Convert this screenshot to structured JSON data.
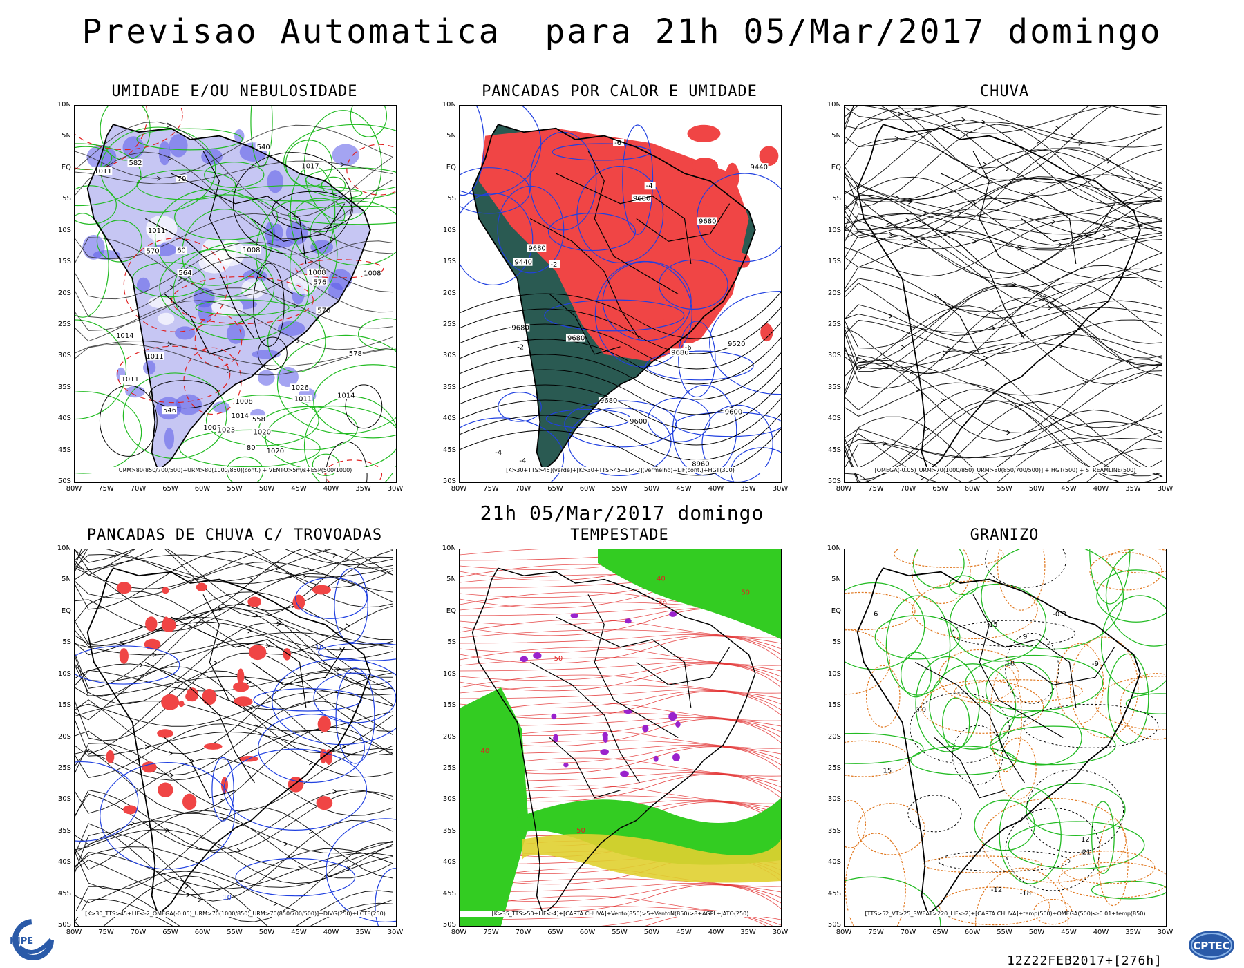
{
  "header": {
    "title": "Previsao Automatica  para 21h 05/Mar/2017 domingo",
    "mid_title": "21h 05/Mar/2017 domingo"
  },
  "axes": {
    "lat_labels": [
      "10N",
      "5N",
      "EQ",
      "5S",
      "10S",
      "15S",
      "20S",
      "25S",
      "30S",
      "35S",
      "40S",
      "45S",
      "50S"
    ],
    "lon_labels": [
      "80W",
      "75W",
      "70W",
      "65W",
      "60W",
      "55W",
      "50W",
      "45W",
      "40W",
      "35W",
      "30W"
    ]
  },
  "panels": [
    {
      "title": "UMIDADE E/OU NEBULOSIDADE",
      "legend": "URM>80(850/700/500)+URM>80(1000/850)(cont.) + VENTO>5m/s+ESP(500/1000)"
    },
    {
      "title": "PANCADAS POR CALOR E UMIDADE",
      "legend": "[K>30+TTS>45](verde)+[K>30+TTS>45+LI<-2](vermelho)+LIF(cont.)+HGT(300)"
    },
    {
      "title": "CHUVA",
      "legend": "[OMEGA(-0.05)_URM>70(1000/850)_URM>80(850/700/500)] + HGT(500) + STREAMLINE(500)"
    },
    {
      "title": "PANCADAS DE CHUVA C/ TROVOADAS",
      "legend": "[K>30_TTS>45+LIF<-2_OMEGA(-0.05)_URM>70(1000/850)_URM>70(850/700/500)]+DIVG(250)+LCTE(250)"
    },
    {
      "title": "TEMPESTADE",
      "legend": "[K>35_TTS>50+LIF<-4]+[CARTA CHUVA]+Vento(850)>5+VentoN(850)>8+AGPL+JATO(250)"
    },
    {
      "title": "GRANIZO",
      "legend": "[TTS>52_VT>25_SWEAT>220_LIF<-2]+[CARTA CHUVA]+temp(500)+OMEGA(500)<-0.01+temp(850)"
    }
  ],
  "contour_labels": {
    "p1": [
      "1008",
      "1008",
      "1008",
      "1011",
      "1008",
      "1011",
      "1014",
      "1014",
      "1008",
      "1011",
      "1011",
      "1014",
      "1023",
      "1020",
      "1017",
      "1020",
      "1026",
      "1011",
      "578",
      "576",
      "582",
      "576",
      "570",
      "564",
      "558",
      "546",
      "540",
      "80",
      "70",
      "60"
    ],
    "p2": [
      "9680",
      "9680",
      "9680",
      "9680",
      "9680",
      "9680",
      "9680",
      "9600",
      "9600",
      "9520",
      "9440",
      "9440",
      "8960",
      "-2",
      "-4",
      "-6",
      "-4",
      "-2",
      "-4",
      "-6"
    ],
    "p4": [
      "10",
      "10"
    ],
    "p5": [
      "50",
      "40",
      "50",
      "60",
      "40",
      "50"
    ],
    "p6": [
      "18",
      "21",
      "-6",
      "-9",
      "-12",
      "-15",
      "-18",
      "-0.3",
      "-0.9",
      "15",
      "12",
      "9"
    ]
  },
  "footer": {
    "run": "12Z22FEB2017+[276h]",
    "left_logo": "INPE",
    "right_logo": "CPTEC"
  },
  "colors": {
    "humidity_fill": "#b8b8f0",
    "humidity_dark": "#5a5ae8",
    "green_contour": "#22bb22",
    "red_dashed": "#e02020",
    "red_fill": "#f04545",
    "teal_fill": "#2a5a52",
    "blue_contour": "#2040e0",
    "storm_green": "#33cc22",
    "storm_yellow": "#e0d030",
    "purple": "#9a22cc",
    "orange": "#e07820",
    "cptec_blue": "#2a5aa8"
  }
}
